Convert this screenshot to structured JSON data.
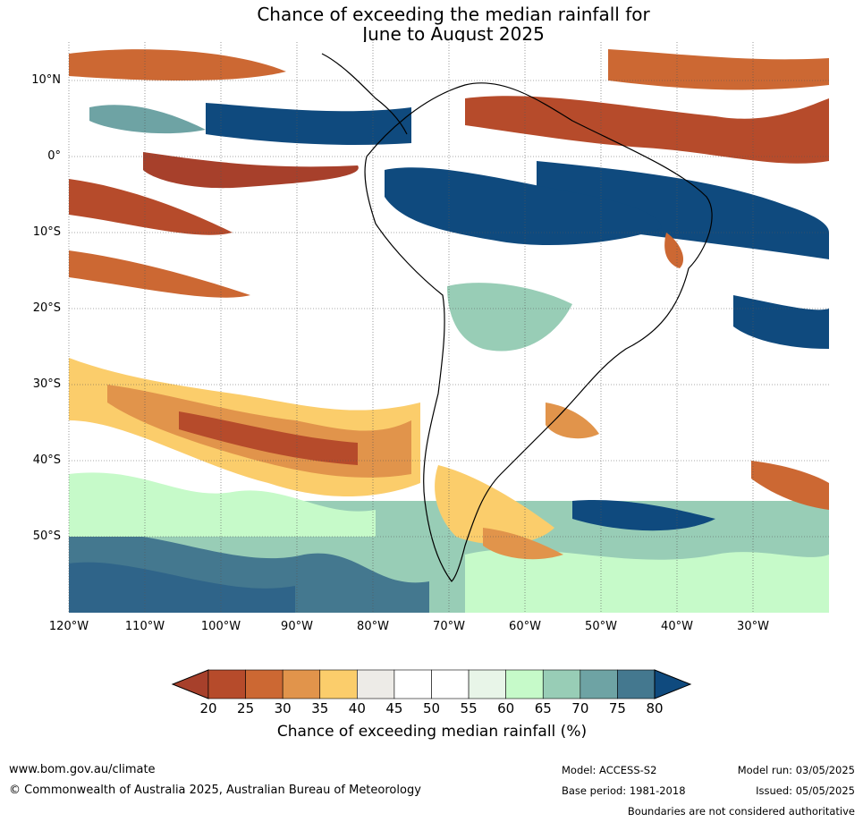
{
  "title_line1": "Chance of exceeding the median rainfall for",
  "title_line2": "June to August 2025",
  "lat_labels": [
    "10°N",
    "0°",
    "10°S",
    "20°S",
    "30°S",
    "40°S",
    "50°S"
  ],
  "lon_labels": [
    "120°W",
    "110°W",
    "100°W",
    "90°W",
    "80°W",
    "70°W",
    "60°W",
    "50°W",
    "40°W",
    "30°W"
  ],
  "colorbar": {
    "ticks": [
      "20",
      "25",
      "30",
      "35",
      "40",
      "45",
      "50",
      "55",
      "60",
      "65",
      "70",
      "75",
      "80"
    ],
    "colors": [
      "#b64b2b",
      "#cc6833",
      "#e1944b",
      "#fbcd6b",
      "#edebe7",
      "#ffffff",
      "#ffffff",
      "#e8f5e8",
      "#c6fac9",
      "#98cdb6",
      "#6ea3a4",
      "#44788f"
    ],
    "under_color": "#a7402b",
    "over_color": "#0f4a7e",
    "label": "Chance of exceeding median rainfall (%)"
  },
  "footer": {
    "url": "www.bom.gov.au/climate",
    "copyright": "© Commonwealth of Australia 2025, Australian Bureau of Meteorology",
    "model": "Model: ACCESS-S2",
    "base_period": "Base period: 1981-2018",
    "model_run": "Model run: 03/05/2025",
    "issued": "Issued: 05/05/2025",
    "disclaimer": "Boundaries are not considered authoritative"
  }
}
